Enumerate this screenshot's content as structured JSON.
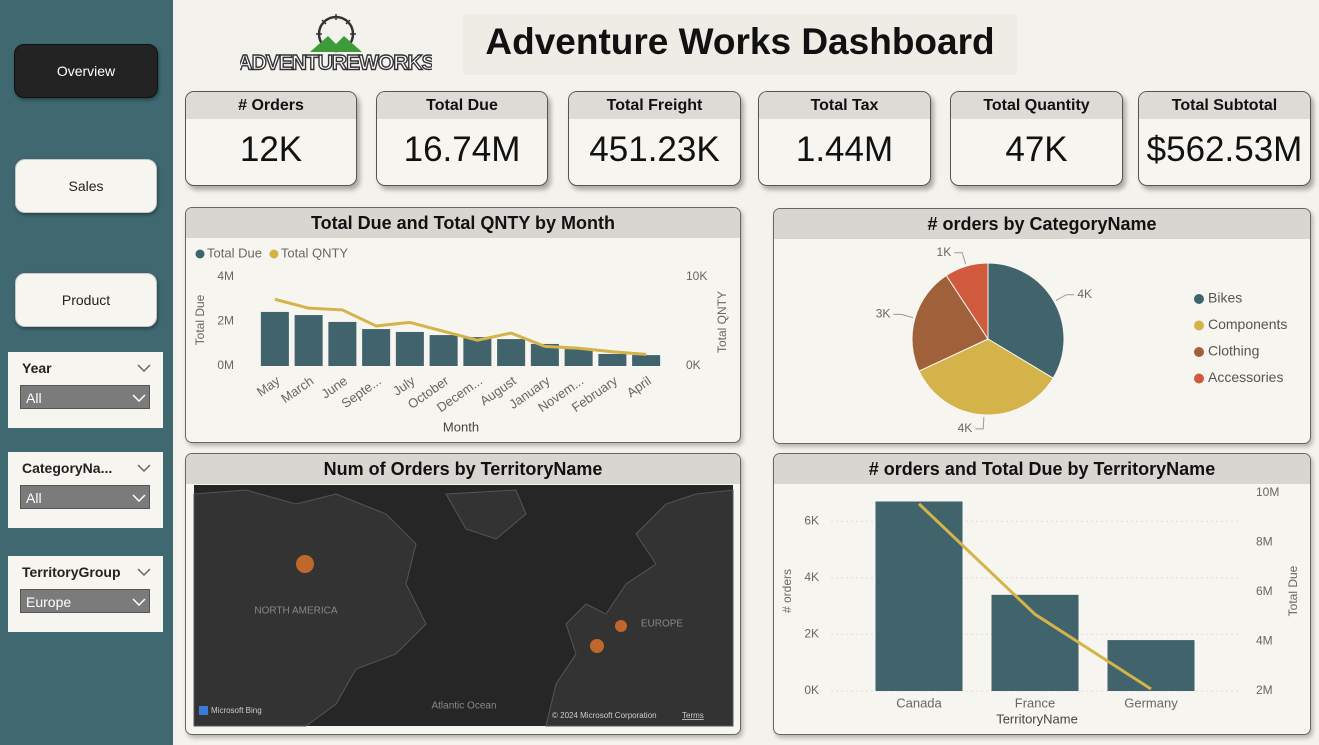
{
  "logo": {
    "text": "ADVENTUREWORKS"
  },
  "header": {
    "title": "Adventure Works Dashboard"
  },
  "nav": [
    "Overview",
    "Sales",
    "Product"
  ],
  "slicers": [
    {
      "title": "Year",
      "value": "All"
    },
    {
      "title": "CategoryNa...",
      "value": "All"
    },
    {
      "title": "TerritoryGroup",
      "value": "Europe"
    }
  ],
  "kpis": [
    {
      "label": "# Orders",
      "value": "12K"
    },
    {
      "label": "Total Due",
      "value": "16.74M"
    },
    {
      "label": "Total Freight",
      "value": "451.23K"
    },
    {
      "label": "Total Tax",
      "value": "1.44M"
    },
    {
      "label": "Total Quantity",
      "value": "47K"
    },
    {
      "label": "Total Subtotal",
      "value": "$562.53M"
    }
  ],
  "map": {
    "title": "Num of Orders by TerritoryName",
    "labels": [
      "NORTH AMERICA",
      "EUROPE",
      "Atlantic Ocean"
    ],
    "attribution": "Microsoft Bing",
    "copyright": "© 2024 Microsoft Corporation",
    "terms": "Terms"
  },
  "chart_data": [
    {
      "type": "combo",
      "title": "Total Due and Total QNTY by Month",
      "x_label": "Month",
      "y_label": "Total Due",
      "y2_label": "Total QNTY",
      "categories": [
        "May",
        "March",
        "June",
        "Septe...",
        "July",
        "October",
        "Decem...",
        "August",
        "January",
        "Novem...",
        "February",
        "April"
      ],
      "series": [
        {
          "name": "Total Due",
          "type": "bar",
          "color": "#41646c",
          "values": [
            2430000,
            2290000,
            1980000,
            1660000,
            1530000,
            1390000,
            1300000,
            1210000,
            990000,
            760000,
            540000,
            490000
          ]
        },
        {
          "name": "Total QNTY",
          "type": "line",
          "axis": "y2",
          "color": "#d4b34a",
          "values": [
            7500,
            6500,
            6300,
            4500,
            4900,
            3900,
            2900,
            3700,
            2200,
            2000,
            1600,
            1300
          ]
        }
      ],
      "ylim": [
        0,
        4000000
      ],
      "yticks": [
        {
          "value": 0,
          "label": "0M"
        },
        {
          "value": 2000000,
          "label": "2M"
        },
        {
          "value": 4000000,
          "label": "4M"
        }
      ],
      "y2lim": [
        0,
        10000
      ],
      "y2ticks": [
        {
          "value": 0,
          "label": "0K"
        },
        {
          "value": 10000,
          "label": "10K"
        }
      ],
      "grid": false,
      "legend": "top-left"
    },
    {
      "type": "pie",
      "title": "# orders by CategoryName",
      "categories": [
        "Bikes",
        "Components",
        "Clothing",
        "Accessories"
      ],
      "values": [
        4000,
        4100,
        2700,
        1100
      ],
      "value_labels": [
        "4K",
        "4K",
        "3K",
        "1K"
      ],
      "colors": [
        "#41646c",
        "#d4b34a",
        "#a0603a",
        "#d05a3e"
      ],
      "legend": "right"
    },
    {
      "type": "combo",
      "title": "# orders and Total Due by TerritoryName",
      "x_label": "TerritoryName",
      "y_label": "# orders",
      "y2_label": "Total Due",
      "categories": [
        "Canada",
        "France",
        "Germany"
      ],
      "series": [
        {
          "name": "# orders",
          "type": "bar",
          "color": "#41646c",
          "values": [
            6700,
            3400,
            1800
          ]
        },
        {
          "name": "Total Due",
          "type": "line",
          "axis": "y2",
          "color": "#d4b34a",
          "values": [
            9560000,
            5100000,
            2080000
          ]
        }
      ],
      "ylim": [
        0,
        7000
      ],
      "yticks": [
        {
          "value": 0,
          "label": "0K"
        },
        {
          "value": 2000,
          "label": "2K"
        },
        {
          "value": 4000,
          "label": "4K"
        },
        {
          "value": 6000,
          "label": "6K"
        }
      ],
      "y2lim": [
        2000000,
        10000000
      ],
      "y2ticks": [
        {
          "value": 2000000,
          "label": "2M"
        },
        {
          "value": 4000000,
          "label": "4M"
        },
        {
          "value": 6000000,
          "label": "6M"
        },
        {
          "value": 8000000,
          "label": "8M"
        },
        {
          "value": 10000000,
          "label": "10M"
        }
      ],
      "grid": true
    }
  ]
}
